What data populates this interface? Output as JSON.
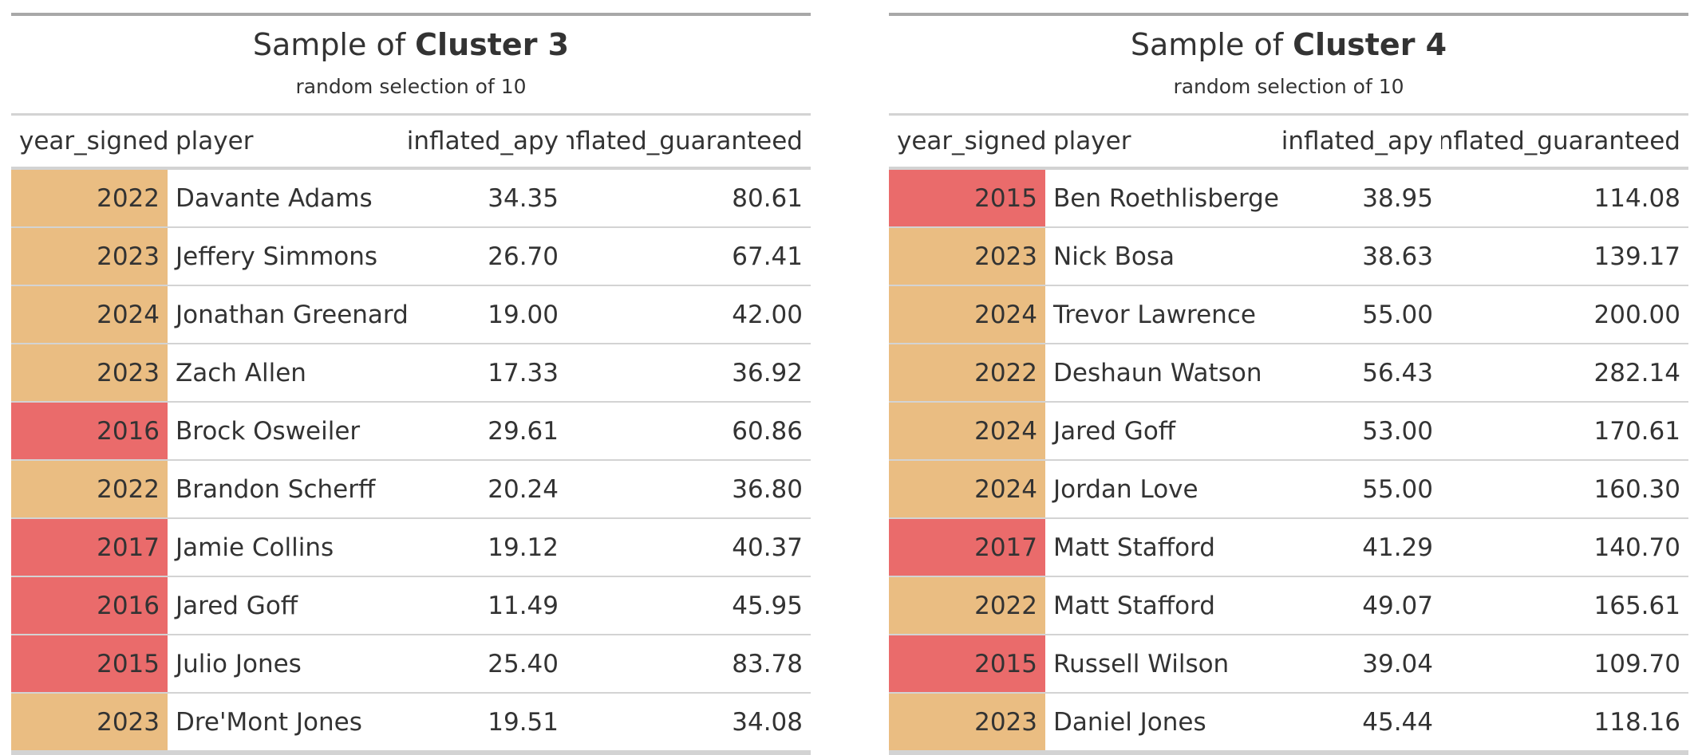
{
  "colors": {
    "year_old": "#ea6b6b",
    "year_recent": "#eabd82",
    "top_rule": "#a8a8a8",
    "rule": "#d3d3d3",
    "text": "#333333"
  },
  "tables": [
    {
      "title_prefix": "Sample of ",
      "title_bold": "Cluster 3",
      "subtitle": "random selection of 10",
      "columns": [
        "year_signed",
        "player",
        "inflated_apy",
        "inflated_guaranteed"
      ],
      "rows": [
        {
          "year_signed": "2022",
          "player": "Davante Adams",
          "inflated_apy": "34.35",
          "inflated_guaranteed": "80.61"
        },
        {
          "year_signed": "2023",
          "player": "Jeffery Simmons",
          "inflated_apy": "26.70",
          "inflated_guaranteed": "67.41"
        },
        {
          "year_signed": "2024",
          "player": "Jonathan Greenard",
          "inflated_apy": "19.00",
          "inflated_guaranteed": "42.00"
        },
        {
          "year_signed": "2023",
          "player": "Zach Allen",
          "inflated_apy": "17.33",
          "inflated_guaranteed": "36.92"
        },
        {
          "year_signed": "2016",
          "player": "Brock Osweiler",
          "inflated_apy": "29.61",
          "inflated_guaranteed": "60.86"
        },
        {
          "year_signed": "2022",
          "player": "Brandon Scherff",
          "inflated_apy": "20.24",
          "inflated_guaranteed": "36.80"
        },
        {
          "year_signed": "2017",
          "player": "Jamie Collins",
          "inflated_apy": "19.12",
          "inflated_guaranteed": "40.37"
        },
        {
          "year_signed": "2016",
          "player": "Jared Goff",
          "inflated_apy": "11.49",
          "inflated_guaranteed": "45.95"
        },
        {
          "year_signed": "2015",
          "player": "Julio Jones",
          "inflated_apy": "25.40",
          "inflated_guaranteed": "83.78"
        },
        {
          "year_signed": "2023",
          "player": "Dre'Mont Jones",
          "inflated_apy": "19.51",
          "inflated_guaranteed": "34.08"
        }
      ]
    },
    {
      "title_prefix": "Sample of ",
      "title_bold": "Cluster 4",
      "subtitle": "random selection of 10",
      "columns": [
        "year_signed",
        "player",
        "inflated_apy",
        "inflated_guaranteed"
      ],
      "rows": [
        {
          "year_signed": "2015",
          "player": "Ben Roethlisberger",
          "inflated_apy": "38.95",
          "inflated_guaranteed": "114.08"
        },
        {
          "year_signed": "2023",
          "player": "Nick Bosa",
          "inflated_apy": "38.63",
          "inflated_guaranteed": "139.17"
        },
        {
          "year_signed": "2024",
          "player": "Trevor Lawrence",
          "inflated_apy": "55.00",
          "inflated_guaranteed": "200.00"
        },
        {
          "year_signed": "2022",
          "player": "Deshaun Watson",
          "inflated_apy": "56.43",
          "inflated_guaranteed": "282.14"
        },
        {
          "year_signed": "2024",
          "player": "Jared Goff",
          "inflated_apy": "53.00",
          "inflated_guaranteed": "170.61"
        },
        {
          "year_signed": "2024",
          "player": "Jordan Love",
          "inflated_apy": "55.00",
          "inflated_guaranteed": "160.30"
        },
        {
          "year_signed": "2017",
          "player": "Matt Stafford",
          "inflated_apy": "41.29",
          "inflated_guaranteed": "140.70"
        },
        {
          "year_signed": "2022",
          "player": "Matt Stafford",
          "inflated_apy": "49.07",
          "inflated_guaranteed": "165.61"
        },
        {
          "year_signed": "2015",
          "player": "Russell Wilson",
          "inflated_apy": "39.04",
          "inflated_guaranteed": "109.70"
        },
        {
          "year_signed": "2023",
          "player": "Daniel Jones",
          "inflated_apy": "45.44",
          "inflated_guaranteed": "118.16"
        }
      ]
    }
  ]
}
